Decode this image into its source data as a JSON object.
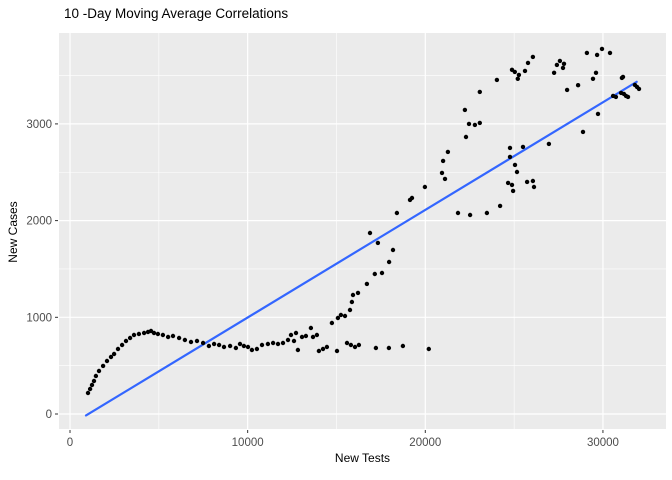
{
  "chart_data": {
    "type": "scatter",
    "title": "10 -Day Moving Average Correlations",
    "xlabel": "New Tests",
    "ylabel": "New Cases",
    "xlim": [
      -620,
      33550
    ],
    "ylim": [
      -155,
      3940
    ],
    "x_ticks": [
      0,
      10000,
      20000,
      30000
    ],
    "y_ticks": [
      0,
      1000,
      2000,
      3000
    ],
    "x_minor_ticks": [
      5000,
      15000,
      25000
    ],
    "y_minor_ticks": [
      500,
      1500,
      2500,
      3500
    ],
    "grid": "on",
    "legend": "none",
    "panel_bg_color": "#EBEBEB",
    "grid_major_color": "#FFFFFF",
    "grid_minor_color": "#FFFFFF",
    "tick_mark_color": "#333333",
    "tick_label_color": "#4D4D4D",
    "point_color": "#000000",
    "trend_line": {
      "color": "#3366FF",
      "x": [
        900,
        31900
      ],
      "y": [
        -15,
        3435
      ]
    },
    "points": [
      [
        1010,
        217
      ],
      [
        1130,
        259
      ],
      [
        1240,
        300
      ],
      [
        1350,
        341
      ],
      [
        1460,
        393
      ],
      [
        1630,
        445
      ],
      [
        1860,
        497
      ],
      [
        2080,
        548
      ],
      [
        2310,
        590
      ],
      [
        2480,
        621
      ],
      [
        2700,
        672
      ],
      [
        2930,
        714
      ],
      [
        3150,
        755
      ],
      [
        3380,
        786
      ],
      [
        3600,
        817
      ],
      [
        3880,
        827
      ],
      [
        4170,
        838
      ],
      [
        4390,
        848
      ],
      [
        4560,
        858
      ],
      [
        4730,
        838
      ],
      [
        4950,
        827
      ],
      [
        5230,
        817
      ],
      [
        5520,
        796
      ],
      [
        5800,
        807
      ],
      [
        6140,
        786
      ],
      [
        6470,
        765
      ],
      [
        6810,
        745
      ],
      [
        7150,
        755
      ],
      [
        7490,
        734
      ],
      [
        7820,
        703
      ],
      [
        8110,
        724
      ],
      [
        8390,
        714
      ],
      [
        8670,
        693
      ],
      [
        9010,
        703
      ],
      [
        9340,
        683
      ],
      [
        9570,
        724
      ],
      [
        9790,
        703
      ],
      [
        10020,
        693
      ],
      [
        10240,
        662
      ],
      [
        10520,
        672
      ],
      [
        10810,
        714
      ],
      [
        11140,
        724
      ],
      [
        11430,
        734
      ],
      [
        11710,
        724
      ],
      [
        11990,
        734
      ],
      [
        12270,
        765
      ],
      [
        12440,
        817
      ],
      [
        12610,
        755
      ],
      [
        12720,
        838
      ],
      [
        12830,
        662
      ],
      [
        13060,
        796
      ],
      [
        13280,
        807
      ],
      [
        13560,
        889
      ],
      [
        13680,
        796
      ],
      [
        13900,
        817
      ],
      [
        14010,
        652
      ],
      [
        14240,
        672
      ],
      [
        14460,
        693
      ],
      [
        14740,
        941
      ],
      [
        15030,
        652
      ],
      [
        15590,
        734
      ],
      [
        15810,
        714
      ],
      [
        16040,
        693
      ],
      [
        16260,
        714
      ],
      [
        17220,
        683
      ],
      [
        17950,
        683
      ],
      [
        18740,
        703
      ],
      [
        20200,
        672
      ],
      [
        15080,
        993
      ],
      [
        15250,
        1024
      ],
      [
        15480,
        1014
      ],
      [
        15760,
        1076
      ],
      [
        15870,
        1158
      ],
      [
        15930,
        1231
      ],
      [
        16210,
        1252
      ],
      [
        16710,
        1345
      ],
      [
        17160,
        1448
      ],
      [
        17560,
        1458
      ],
      [
        16890,
        1872
      ],
      [
        17330,
        1769
      ],
      [
        17960,
        1572
      ],
      [
        18180,
        1696
      ],
      [
        18400,
        2079
      ],
      [
        19140,
        2214
      ],
      [
        19250,
        2234
      ],
      [
        19980,
        2348
      ],
      [
        20940,
        2493
      ],
      [
        21000,
        2617
      ],
      [
        21110,
        2431
      ],
      [
        21270,
        2710
      ],
      [
        22290,
        2865
      ],
      [
        22230,
        3145
      ],
      [
        22460,
        3000
      ],
      [
        22790,
        2990
      ],
      [
        23070,
        3010
      ],
      [
        21840,
        2079
      ],
      [
        22520,
        2058
      ],
      [
        23470,
        2079
      ],
      [
        24210,
        2152
      ],
      [
        24770,
        2752
      ],
      [
        25500,
        2762
      ],
      [
        24770,
        2659
      ],
      [
        25050,
        2576
      ],
      [
        25160,
        2503
      ],
      [
        24660,
        2390
      ],
      [
        24880,
        2369
      ],
      [
        24940,
        2307
      ],
      [
        25730,
        2400
      ],
      [
        26060,
        2410
      ],
      [
        26120,
        2348
      ],
      [
        23070,
        3331
      ],
      [
        24030,
        3455
      ],
      [
        24880,
        3559
      ],
      [
        25040,
        3538
      ],
      [
        25210,
        3466
      ],
      [
        25270,
        3507
      ],
      [
        25610,
        3548
      ],
      [
        25780,
        3631
      ],
      [
        26060,
        3693
      ],
      [
        26960,
        2793
      ],
      [
        27250,
        3528
      ],
      [
        27410,
        3610
      ],
      [
        27580,
        3652
      ],
      [
        27750,
        3579
      ],
      [
        27810,
        3621
      ],
      [
        27980,
        3352
      ],
      [
        28600,
        3400
      ],
      [
        28880,
        2917
      ],
      [
        29100,
        3734
      ],
      [
        29440,
        3466
      ],
      [
        29610,
        3528
      ],
      [
        29670,
        3714
      ],
      [
        29720,
        3103
      ],
      [
        29950,
        3776
      ],
      [
        30400,
        3734
      ],
      [
        30570,
        3290
      ],
      [
        30730,
        3279
      ],
      [
        31020,
        3321
      ],
      [
        31070,
        3476
      ],
      [
        31130,
        3486
      ],
      [
        31180,
        3310
      ],
      [
        31300,
        3290
      ],
      [
        31410,
        3279
      ],
      [
        31800,
        3403
      ],
      [
        31920,
        3383
      ],
      [
        32030,
        3362
      ]
    ]
  }
}
